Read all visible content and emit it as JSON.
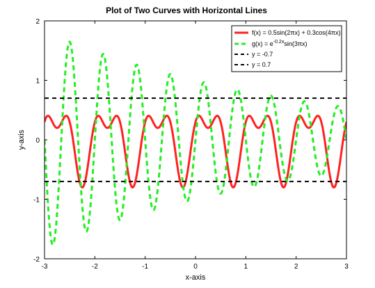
{
  "chart_data": {
    "type": "line",
    "title": "Plot of Two Curves with Horizontal Lines",
    "xlabel": "x-axis",
    "ylabel": "y-axis",
    "xlim": [
      -3,
      3
    ],
    "ylim": [
      -2,
      2
    ],
    "xticks": [
      -3,
      -2,
      -1,
      0,
      1,
      2,
      3
    ],
    "yticks": [
      -2,
      -1,
      0,
      1,
      2
    ],
    "xtick_labels": [
      "-3",
      "-2",
      "-1",
      "0",
      "1",
      "2",
      "3"
    ],
    "ytick_labels": [
      "-2",
      "-1",
      "0",
      "1",
      "2"
    ],
    "grid": false,
    "legend_position": "top-right",
    "series": [
      {
        "name": "f(x) = 0.5sin(2πx) + 0.3cos(4πx)",
        "formula": "0.5*sin(2*pi*x) + 0.3*cos(4*pi*x)",
        "color": "#ff2020",
        "style": "solid"
      },
      {
        "name_main": "g(x) = e",
        "name_sup": "-0.2x",
        "name_tail": "sin(3πx)",
        "formula": "exp(-0.2*x)*sin(3*pi*x)",
        "color": "#22ee22",
        "style": "dashed"
      },
      {
        "name": "y = -0.7",
        "value": -0.7,
        "color": "#000000",
        "style": "dashed"
      },
      {
        "name": "y = 0.7",
        "value": 0.7,
        "color": "#000000",
        "style": "dashed"
      }
    ]
  }
}
